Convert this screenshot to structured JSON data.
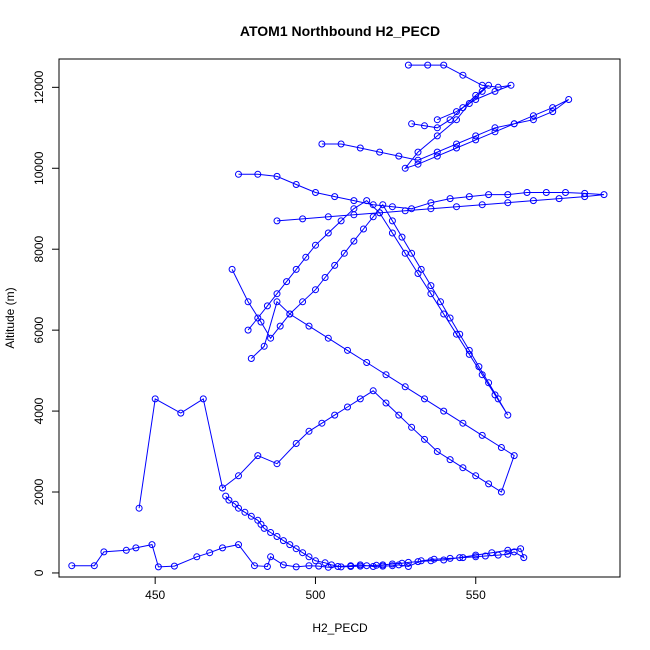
{
  "chart_data": {
    "type": "line",
    "title": "ATOM1 Northbound H2_PECD",
    "xlabel": "H2_PECD",
    "ylabel": "Altitude (m)",
    "xlim": [
      420,
      595
    ],
    "ylim": [
      -100,
      12700
    ],
    "xticks": [
      450,
      500,
      550
    ],
    "yticks": [
      0,
      2000,
      4000,
      6000,
      8000,
      10000,
      12000
    ],
    "grid": false,
    "markers": "open-circle",
    "color": "#0000ff",
    "series": [
      {
        "x": [
          424,
          431,
          434,
          441,
          444,
          449,
          451,
          456,
          463,
          467,
          471,
          476,
          481,
          485,
          486,
          490,
          494,
          498,
          501,
          504,
          507,
          511,
          514,
          518,
          521,
          524,
          526,
          529,
          533,
          537,
          542,
          546,
          550,
          553,
          557,
          560,
          562,
          565,
          564,
          560,
          555,
          550,
          545,
          540,
          536,
          532,
          529,
          527,
          524,
          521,
          519,
          516,
          514,
          511,
          508,
          505,
          503,
          500,
          498,
          496,
          494,
          492,
          490,
          488,
          486,
          484,
          483,
          482,
          480,
          478,
          476,
          475,
          473,
          472
        ],
        "y": [
          180,
          180,
          520,
          560,
          620,
          700,
          150,
          170,
          400,
          500,
          620,
          700,
          180,
          160,
          400,
          200,
          150,
          180,
          170,
          140,
          160,
          180,
          200,
          160,
          170,
          180,
          200,
          160,
          300,
          340,
          360,
          380,
          400,
          420,
          440,
          460,
          520,
          380,
          600,
          560,
          500,
          440,
          380,
          320,
          300,
          280,
          260,
          240,
          220,
          200,
          190,
          180,
          170,
          160,
          150,
          200,
          250,
          300,
          400,
          500,
          600,
          700,
          800,
          900,
          1000,
          1100,
          1200,
          1300,
          1400,
          1500,
          1600,
          1700,
          1800,
          1900
        ]
      },
      {
        "x": [
          445,
          450,
          458,
          465,
          471,
          476,
          482,
          488,
          494,
          498,
          502,
          506,
          510,
          514,
          518,
          522,
          526,
          530,
          534,
          538,
          542,
          546,
          550,
          554,
          558,
          562,
          558,
          552,
          546,
          540,
          534,
          528,
          522,
          516,
          510,
          504,
          498,
          492,
          488,
          484,
          480
        ],
        "y": [
          1600,
          4300,
          3950,
          4300,
          2100,
          2400,
          2900,
          2700,
          3200,
          3500,
          3700,
          3900,
          4100,
          4300,
          4500,
          4200,
          3900,
          3600,
          3300,
          3000,
          2800,
          2600,
          2400,
          2200,
          2000,
          2900,
          3100,
          3400,
          3700,
          4000,
          4300,
          4600,
          4900,
          5200,
          5500,
          5800,
          6100,
          6400,
          6700,
          5600,
          5300
        ]
      },
      {
        "x": [
          474,
          479,
          483,
          486,
          489,
          492,
          496,
          500,
          503,
          506,
          509,
          512,
          515,
          518,
          521,
          524,
          527,
          530,
          533,
          536,
          539,
          542,
          545,
          548,
          551,
          554,
          557,
          560,
          556,
          552,
          548,
          544,
          540,
          536,
          532,
          528,
          524,
          520,
          516,
          512,
          508,
          504,
          500,
          497,
          494,
          491,
          488,
          485,
          482,
          479
        ],
        "y": [
          7500,
          6700,
          6200,
          5800,
          6100,
          6400,
          6700,
          7000,
          7300,
          7600,
          7900,
          8200,
          8500,
          8800,
          9100,
          8700,
          8300,
          7900,
          7500,
          7100,
          6700,
          6300,
          5900,
          5500,
          5100,
          4700,
          4300,
          3900,
          4400,
          4900,
          5400,
          5900,
          6400,
          6900,
          7400,
          7900,
          8400,
          8900,
          9200,
          9000,
          8700,
          8400,
          8100,
          7800,
          7500,
          7200,
          6900,
          6600,
          6300,
          6000
        ]
      },
      {
        "x": [
          476,
          482,
          488,
          494,
          500,
          506,
          512,
          518,
          524,
          530,
          536,
          542,
          548,
          554,
          560,
          566,
          572,
          578,
          584,
          590,
          584,
          576,
          568,
          560,
          552,
          544,
          536,
          528,
          520,
          512,
          504,
          496,
          488
        ],
        "y": [
          9850,
          9850,
          9800,
          9600,
          9400,
          9300,
          9200,
          9100,
          9050,
          9000,
          9150,
          9250,
          9300,
          9350,
          9350,
          9400,
          9400,
          9400,
          9380,
          9350,
          9300,
          9250,
          9200,
          9150,
          9100,
          9050,
          9000,
          8950,
          8900,
          8850,
          8800,
          8750,
          8700
        ]
      },
      {
        "x": [
          502,
          508,
          514,
          520,
          526,
          532,
          538,
          544,
          550,
          556,
          562,
          568,
          574,
          579,
          574,
          568,
          562,
          556,
          550,
          544,
          538,
          532,
          528,
          532,
          538,
          544,
          548,
          552,
          554,
          550,
          546,
          542,
          538,
          534,
          530
        ],
        "y": [
          10600,
          10600,
          10500,
          10400,
          10300,
          10200,
          10400,
          10600,
          10800,
          11000,
          11100,
          11200,
          11400,
          11700,
          11500,
          11300,
          11100,
          10900,
          10700,
          10500,
          10300,
          10100,
          10000,
          10400,
          10800,
          11200,
          11600,
          11900,
          12050,
          11800,
          11500,
          11200,
          11000,
          11050,
          11100
        ]
      },
      {
        "x": [
          529,
          535,
          540,
          546,
          552,
          557,
          561,
          556,
          550,
          544,
          538
        ],
        "y": [
          12550,
          12550,
          12550,
          12300,
          12050,
          12000,
          12050,
          11900,
          11700,
          11400,
          11200
        ]
      }
    ]
  }
}
